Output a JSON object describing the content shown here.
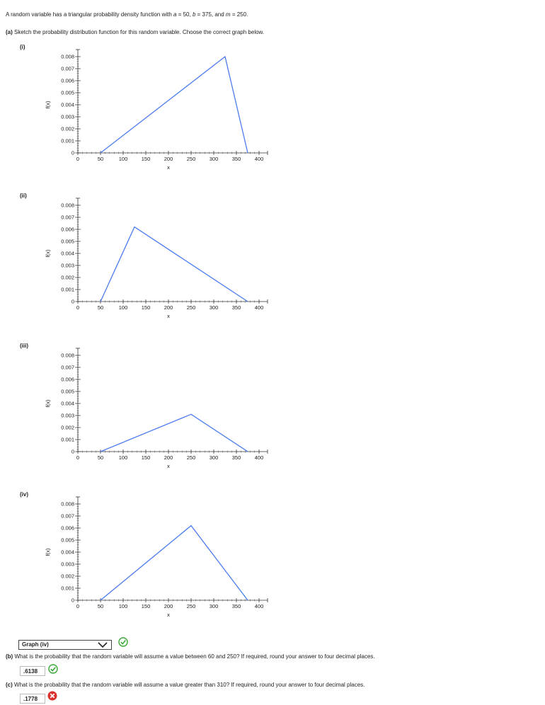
{
  "problem": {
    "text_prefix": "A random variable has a triangular probability density function with ",
    "a_label": "a",
    "a_value": "50",
    "b_label": "b",
    "b_value": "375",
    "m_label": "m",
    "m_value": "250"
  },
  "part_a": {
    "label": "(a)",
    "text": "Sketch the probability distribution function for this random variable. Choose the correct graph below."
  },
  "graphs": [
    {
      "label": "(i)"
    },
    {
      "label": "(ii)"
    },
    {
      "label": "(iii)"
    },
    {
      "label": "(iv)"
    }
  ],
  "chart_data": [
    {
      "type": "line",
      "ylabel": "f(x)",
      "xlabel": "x",
      "x_ticks": [
        "0",
        "50",
        "100",
        "150",
        "200",
        "250",
        "300",
        "350",
        "400"
      ],
      "y_ticks": [
        "0",
        "0.001",
        "0.002",
        "0.003",
        "0.004",
        "0.005",
        "0.006",
        "0.007",
        "0.008"
      ],
      "xlim": [
        0,
        400
      ],
      "ylim": [
        0,
        0.008
      ],
      "series": [
        {
          "x": [
            50,
            325,
            375
          ],
          "y": [
            0,
            0.008,
            0
          ],
          "color": "#4a7bef"
        }
      ]
    },
    {
      "type": "line",
      "ylabel": "f(x)",
      "xlabel": "x",
      "x_ticks": [
        "0",
        "50",
        "100",
        "150",
        "200",
        "250",
        "300",
        "350",
        "400"
      ],
      "y_ticks": [
        "0",
        "0.001",
        "0.002",
        "0.003",
        "0.004",
        "0.005",
        "0.006",
        "0.007",
        "0.008"
      ],
      "xlim": [
        0,
        400
      ],
      "ylim": [
        0,
        0.008
      ],
      "series": [
        {
          "x": [
            50,
            125,
            375
          ],
          "y": [
            0,
            0.0062,
            0
          ],
          "color": "#4a7bef"
        }
      ]
    },
    {
      "type": "line",
      "ylabel": "f(x)",
      "xlabel": "x",
      "x_ticks": [
        "0",
        "50",
        "100",
        "150",
        "200",
        "250",
        "300",
        "350",
        "400"
      ],
      "y_ticks": [
        "0",
        "0.001",
        "0.002",
        "0.003",
        "0.004",
        "0.005",
        "0.006",
        "0.007",
        "0.008"
      ],
      "xlim": [
        0,
        400
      ],
      "ylim": [
        0,
        0.008
      ],
      "series": [
        {
          "x": [
            50,
            250,
            375
          ],
          "y": [
            0,
            0.0031,
            0
          ],
          "color": "#4a7bef"
        }
      ]
    },
    {
      "type": "line",
      "ylabel": "f(x)",
      "xlabel": "x",
      "x_ticks": [
        "0",
        "50",
        "100",
        "150",
        "200",
        "250",
        "300",
        "350",
        "400"
      ],
      "y_ticks": [
        "0",
        "0.001",
        "0.002",
        "0.003",
        "0.004",
        "0.005",
        "0.006",
        "0.007",
        "0.008"
      ],
      "xlim": [
        0,
        400
      ],
      "ylim": [
        0,
        0.008
      ],
      "series": [
        {
          "x": [
            50,
            250,
            375
          ],
          "y": [
            0,
            0.0062,
            0
          ],
          "color": "#4a7bef"
        }
      ]
    }
  ],
  "answer_a": {
    "selected": "Graph (iv)",
    "status_icon": "check-icon",
    "status_color": "#3aa935"
  },
  "part_b": {
    "label": "(b)",
    "text": "What is the probability that the random variable will assume a value between 60 and 250? If required, round your answer to four decimal places.",
    "answer": ".6138",
    "status_icon": "check-icon",
    "status_color": "#3aa935"
  },
  "part_c": {
    "label": "(c)",
    "text": "What is the probability that the random variable will assume a value greater than 310? If required, round your answer to four decimal places.",
    "answer": ".1778",
    "status_icon": "x-icon",
    "status_color": "#d9302c"
  }
}
